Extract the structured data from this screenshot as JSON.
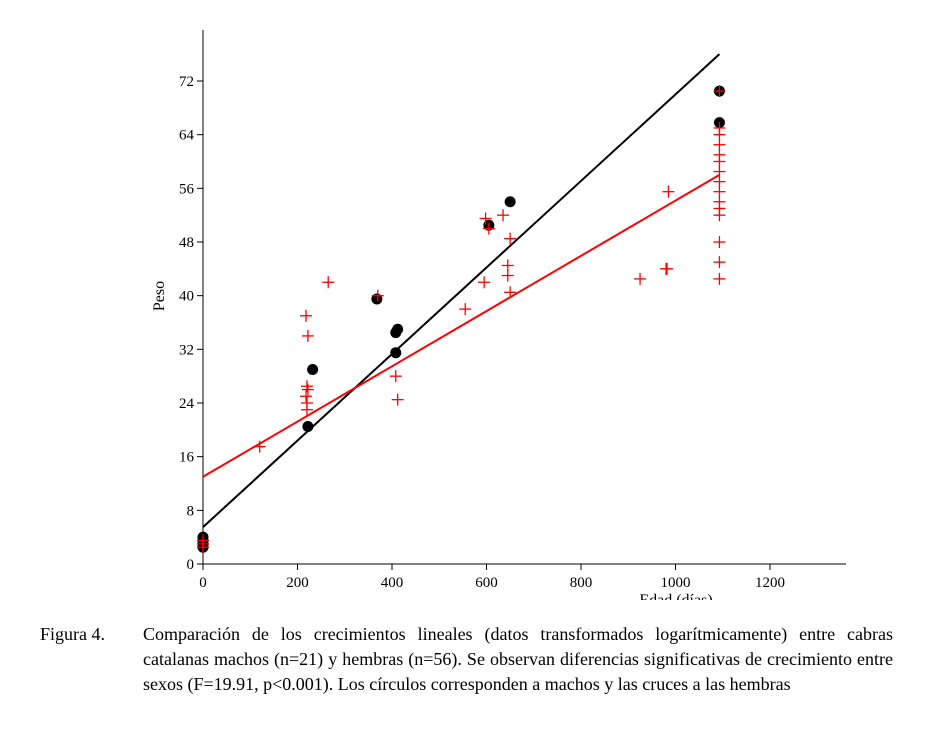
{
  "chart_data": {
    "type": "scatter",
    "title": "",
    "xlabel": "Edad (días)",
    "ylabel": "Peso",
    "xlim": [
      0,
      1350
    ],
    "ylim": [
      0,
      80
    ],
    "x_ticks": [
      0,
      200,
      400,
      600,
      800,
      1000,
      1200
    ],
    "y_ticks": [
      0,
      8,
      16,
      24,
      32,
      40,
      48,
      56,
      64,
      72
    ],
    "grid": false,
    "series": [
      {
        "name": "machos",
        "marker": "circle",
        "color": "#000000",
        "points": [
          [
            0,
            2.5
          ],
          [
            0,
            3
          ],
          [
            0,
            3.5
          ],
          [
            0,
            4
          ],
          [
            222,
            20.5
          ],
          [
            232,
            29
          ],
          [
            368,
            39.5
          ],
          [
            408,
            31.5
          ],
          [
            408,
            34.5
          ],
          [
            412,
            35
          ],
          [
            605,
            50.5
          ],
          [
            650,
            54
          ],
          [
            1093,
            65.8
          ],
          [
            1093,
            70.5
          ]
        ]
      },
      {
        "name": "hembras",
        "marker": "cross",
        "color": "#ff0000",
        "points": [
          [
            0,
            2.5
          ],
          [
            0,
            3
          ],
          [
            0,
            3.5
          ],
          [
            120,
            17.5
          ],
          [
            218,
            37
          ],
          [
            222,
            34
          ],
          [
            220,
            26.5
          ],
          [
            222,
            26
          ],
          [
            218,
            25
          ],
          [
            220,
            24
          ],
          [
            220,
            23
          ],
          [
            265,
            42
          ],
          [
            370,
            40
          ],
          [
            408,
            28
          ],
          [
            412,
            24.5
          ],
          [
            555,
            38
          ],
          [
            595,
            42
          ],
          [
            598,
            51.5
          ],
          [
            605,
            50
          ],
          [
            635,
            52
          ],
          [
            645,
            44.5
          ],
          [
            645,
            43
          ],
          [
            650,
            48.5
          ],
          [
            650,
            40.5
          ],
          [
            925,
            42.5
          ],
          [
            980,
            44
          ],
          [
            982,
            44
          ],
          [
            985,
            55.5
          ],
          [
            1093,
            42.5
          ],
          [
            1093,
            45
          ],
          [
            1093,
            48
          ],
          [
            1093,
            52
          ],
          [
            1093,
            53
          ],
          [
            1093,
            54
          ],
          [
            1093,
            55.5
          ],
          [
            1093,
            57
          ],
          [
            1093,
            58.5
          ],
          [
            1093,
            60
          ],
          [
            1093,
            61
          ],
          [
            1093,
            62.5
          ],
          [
            1093,
            64
          ],
          [
            1093,
            65
          ],
          [
            1093,
            70.5
          ]
        ]
      }
    ],
    "fits": [
      {
        "name": "machos",
        "color": "#000000",
        "x": [
          0,
          1093
        ],
        "y": [
          5.5,
          76
        ]
      },
      {
        "name": "hembras",
        "color": "#ff0000",
        "x": [
          0,
          1093
        ],
        "y": [
          13,
          58
        ]
      }
    ]
  },
  "caption": {
    "label": "Figura 4.",
    "text": "Comparación de los crecimientos lineales (datos transformados logarítmicamente) entre cabras catalanas machos (n=21) y hembras (n=56). Se observan diferencias significativas de crecimiento entre sexos (F=19.91, p<0.001). Los círculos corresponden a machos y las cruces a las hembras"
  }
}
